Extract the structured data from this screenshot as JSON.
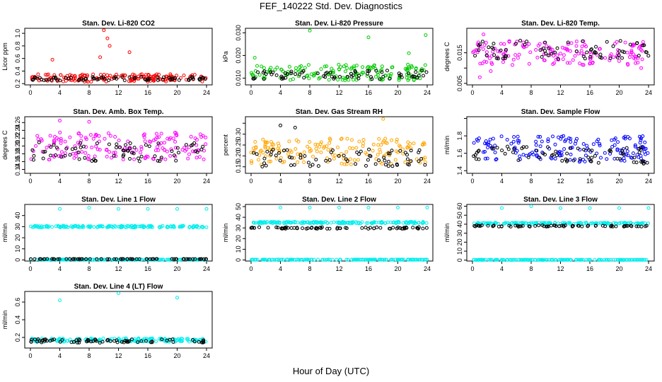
{
  "figure": {
    "title": "FEF_140222  Std. Dev. Diagnostics",
    "xlabel": "Hour of Day (UTC)"
  },
  "chart_data": [
    {
      "type": "scatter",
      "title": "Stan. Dev. Li-820 CO2",
      "ylabel": "Licor ppm",
      "xlim": [
        0,
        24
      ],
      "xticks": [
        0,
        4,
        8,
        12,
        16,
        20,
        24
      ],
      "ylim": [
        0.18,
        1.08
      ],
      "yticks": [
        0.2,
        0.4,
        0.6,
        0.8,
        1.0
      ],
      "ytick_labels": [
        "0.2",
        "0.4",
        "0.6",
        "0.8",
        "1.0"
      ],
      "series": [
        {
          "color": "#ff0000",
          "base": 0.29,
          "spread": 0.06,
          "outliers": [
            [
              10.0,
              1.05
            ],
            [
              10.5,
              0.92
            ],
            [
              10.8,
              0.8
            ],
            [
              13.5,
              0.7
            ],
            [
              3.0,
              0.58
            ],
            [
              9.5,
              0.62
            ],
            [
              0.2,
              0.3
            ]
          ]
        },
        {
          "color": "#000000",
          "base": 0.28,
          "spread": 0.03,
          "outliers": []
        }
      ]
    },
    {
      "type": "scatter",
      "title": "Stan. Dev. Li-820 Pressure",
      "ylabel": "kPa",
      "xlim": [
        0,
        24
      ],
      "xticks": [
        0,
        4,
        8,
        12,
        16,
        20,
        24
      ],
      "ylim": [
        0.007,
        0.032
      ],
      "yticks": [
        0.01,
        0.02,
        0.03
      ],
      "ytick_labels": [
        "0.010",
        "0.020",
        "0.030"
      ],
      "series": [
        {
          "color": "#00cc00",
          "base": 0.0125,
          "spread": 0.0035,
          "outliers": [
            [
              8.0,
              0.031
            ],
            [
              0.5,
              0.019
            ],
            [
              16.0,
              0.028
            ],
            [
              23.8,
              0.029
            ],
            [
              21.5,
              0.021
            ]
          ]
        },
        {
          "color": "#000000",
          "base": 0.0115,
          "spread": 0.002,
          "outliers": []
        }
      ]
    },
    {
      "type": "scatter",
      "title": "Stan. Dev. Li-820 Temp.",
      "ylabel": "degrees C",
      "xlim": [
        0,
        24
      ],
      "xticks": [
        0,
        4,
        8,
        12,
        16,
        20,
        24
      ],
      "ylim": [
        0.0045,
        0.023
      ],
      "yticks": [
        0.005,
        0.01,
        0.015
      ],
      "ytick_labels": [
        "0.005",
        "",
        "0.015"
      ],
      "series": [
        {
          "color": "#ff00ff",
          "base": 0.015,
          "spread": 0.004,
          "outliers": [
            [
              1.0,
              0.007
            ],
            [
              2.5,
              0.009
            ],
            [
              1.5,
              0.021
            ],
            [
              23.0,
              0.01
            ]
          ]
        },
        {
          "color": "#000000",
          "base": 0.016,
          "spread": 0.003,
          "outliers": []
        }
      ]
    },
    {
      "type": "scatter",
      "title": "Stan. Dev. Amb. Box Temp.",
      "ylabel": "degrees C",
      "xlim": [
        0,
        24
      ],
      "xticks": [
        0,
        4,
        8,
        12,
        16,
        20,
        24
      ],
      "ylim": [
        0.13,
        0.275
      ],
      "yticks": [
        0.14,
        0.16,
        0.18,
        0.2,
        0.22,
        0.24,
        0.26
      ],
      "ytick_labels": [
        "0.14",
        "0.16",
        "0.18",
        "0.20",
        "0.22",
        "0.24",
        "0.26"
      ],
      "series": [
        {
          "color": "#ff00ff",
          "base": 0.2,
          "spread": 0.035,
          "outliers": [
            [
              4.0,
              0.265
            ],
            [
              8.0,
              0.262
            ]
          ]
        },
        {
          "color": "#000000",
          "base": 0.185,
          "spread": 0.025,
          "outliers": []
        }
      ]
    },
    {
      "type": "scatter",
      "title": "Stan. Dev. Gas Stream RH",
      "ylabel": "percent",
      "xlim": [
        0,
        24
      ],
      "xticks": [
        0,
        4,
        8,
        12,
        16,
        20,
        24
      ],
      "ylim": [
        0.12,
        0.38
      ],
      "yticks": [
        0.15,
        0.2,
        0.25,
        0.3,
        0.35
      ],
      "ytick_labels": [
        "0.15",
        "0.20",
        "0.25",
        "0.30",
        ""
      ],
      "series": [
        {
          "color": "#ffa500",
          "base": 0.22,
          "spread": 0.06,
          "outliers": [
            [
              18.0,
              0.37
            ]
          ]
        },
        {
          "color": "#000000",
          "base": 0.19,
          "spread": 0.04,
          "outliers": [
            [
              4.0,
              0.34
            ],
            [
              6.0,
              0.33
            ]
          ]
        }
      ]
    },
    {
      "type": "scatter",
      "title": "Stan. Dev. Sample Flow",
      "ylabel": "ml/min",
      "xlim": [
        0,
        24
      ],
      "xticks": [
        0,
        4,
        8,
        12,
        16,
        20,
        24
      ],
      "ylim": [
        1.37,
        2.02
      ],
      "yticks": [
        1.4,
        1.6,
        1.8,
        2.0
      ],
      "ytick_labels": [
        "1.4",
        "1.6",
        "1.8",
        ""
      ],
      "series": [
        {
          "color": "#0000ff",
          "base": 1.65,
          "spread": 0.15,
          "outliers": []
        },
        {
          "color": "#000000",
          "base": 1.58,
          "spread": 0.1,
          "outliers": []
        }
      ]
    },
    {
      "type": "scatter",
      "title": "Stan. Dev. Line 1 Flow",
      "ylabel": "ml/min",
      "xlim": [
        0,
        24
      ],
      "xticks": [
        0,
        4,
        8,
        12,
        16,
        20,
        24
      ],
      "ylim": [
        -1,
        50
      ],
      "yticks": [
        0,
        10,
        20,
        30,
        40
      ],
      "ytick_labels": [
        "0",
        "10",
        "20",
        "30",
        "40"
      ],
      "series": [
        {
          "color": "#00eeee",
          "base": 30,
          "spread": 0.8,
          "outliers": [
            [
              4,
              46
            ],
            [
              8,
              47
            ],
            [
              12,
              46
            ],
            [
              16,
              46
            ],
            [
              20,
              46
            ],
            [
              24,
              46
            ]
          ]
        },
        {
          "color": "#00eeee",
          "base": 0.3,
          "spread": 0.1,
          "outliers": []
        },
        {
          "color": "#000000",
          "base": 0.8,
          "spread": 0.1,
          "outliers": []
        }
      ]
    },
    {
      "type": "scatter",
      "title": "Stan. Dev. Line 2 Flow",
      "ylabel": "ml/min",
      "xlim": [
        0,
        24
      ],
      "xticks": [
        0,
        4,
        8,
        12,
        16,
        20,
        24
      ],
      "ylim": [
        -1,
        52
      ],
      "yticks": [
        0,
        10,
        20,
        30,
        40,
        50
      ],
      "ytick_labels": [
        "0",
        "10",
        "20",
        "30",
        "40",
        "50"
      ],
      "series": [
        {
          "color": "#00eeee",
          "base": 35,
          "spread": 0.8,
          "outliers": [
            [
              4,
              49
            ],
            [
              8,
              49
            ],
            [
              12,
              49
            ],
            [
              16,
              49
            ],
            [
              20,
              49
            ],
            [
              24,
              49
            ]
          ]
        },
        {
          "color": "#00eeee",
          "base": 0.3,
          "spread": 0.1,
          "outliers": []
        },
        {
          "color": "#000000",
          "base": 30,
          "spread": 0.8,
          "outliers": []
        }
      ]
    },
    {
      "type": "scatter",
      "title": "Stan. Dev. Line 3 Flow",
      "ylabel": "ml/min",
      "xlim": [
        0,
        24
      ],
      "xticks": [
        0,
        4,
        8,
        12,
        16,
        20,
        24
      ],
      "ylim": [
        -1,
        62
      ],
      "yticks": [
        0,
        10,
        20,
        30,
        40,
        50,
        60
      ],
      "ytick_labels": [
        "0",
        "10",
        "20",
        "30",
        "40",
        "50",
        "60"
      ],
      "series": [
        {
          "color": "#00eeee",
          "base": 41,
          "spread": 0.8,
          "outliers": [
            [
              4,
              58
            ],
            [
              8,
              60
            ],
            [
              12,
              58
            ],
            [
              16,
              58
            ],
            [
              20,
              58
            ],
            [
              24,
              58
            ]
          ]
        },
        {
          "color": "#00eeee",
          "base": 0.3,
          "spread": 0.1,
          "outliers": []
        },
        {
          "color": "#000000",
          "base": 38,
          "spread": 0.8,
          "outliers": []
        }
      ]
    },
    {
      "type": "scatter",
      "title": "Stan. Dev. Line 4 (LT) Flow",
      "ylabel": "ml/min",
      "xlim": [
        0,
        24
      ],
      "xticks": [
        0,
        4,
        8,
        12,
        16,
        20,
        24
      ],
      "ylim": [
        0.08,
        0.72
      ],
      "yticks": [
        0.2,
        0.4,
        0.6
      ],
      "ytick_labels": [
        "0.2",
        "0.4",
        "0.6"
      ],
      "series": [
        {
          "color": "#00eeee",
          "base": 0.17,
          "spread": 0.02,
          "outliers": [
            [
              4,
              0.62
            ],
            [
              12,
              0.7
            ],
            [
              20,
              0.65
            ]
          ]
        },
        {
          "color": "#000000",
          "base": 0.16,
          "spread": 0.02,
          "outliers": []
        }
      ]
    }
  ]
}
